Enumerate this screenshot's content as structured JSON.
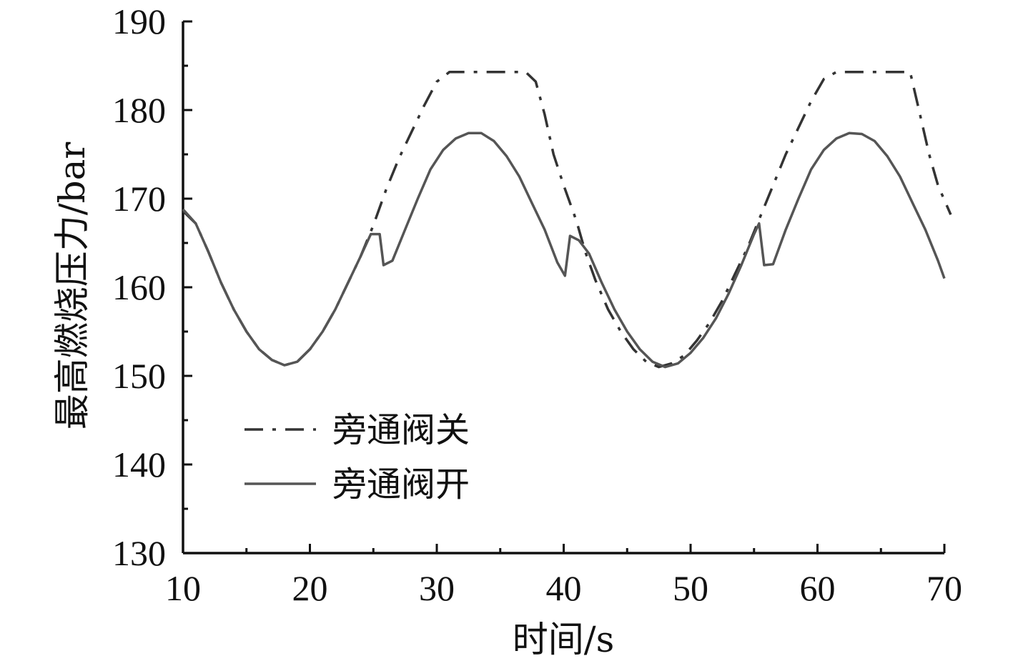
{
  "chart_data": {
    "type": "line",
    "title": "",
    "xlabel": "时间/s",
    "ylabel": "最高燃烧压力/bar",
    "xlim": [
      10,
      70
    ],
    "ylim": [
      130,
      190
    ],
    "xticks": [
      10,
      20,
      30,
      40,
      50,
      60,
      70
    ],
    "yticks": [
      130,
      140,
      150,
      160,
      170,
      180,
      190
    ],
    "grid": false,
    "legend_position": "lower-left",
    "series": [
      {
        "name": "旁通阀关",
        "style": "dash-dot",
        "color": "#333333",
        "points": [
          [
            10,
            168.6
          ],
          [
            11,
            167.2
          ],
          [
            12,
            164
          ],
          [
            13,
            160.5
          ],
          [
            14,
            157.5
          ],
          [
            15,
            155
          ],
          [
            16,
            153
          ],
          [
            17,
            151.8
          ],
          [
            18,
            151.2
          ],
          [
            19,
            151.6
          ],
          [
            20,
            153
          ],
          [
            21,
            155
          ],
          [
            22,
            157.5
          ],
          [
            23,
            160.5
          ],
          [
            24,
            163.5
          ],
          [
            25,
            167
          ],
          [
            26,
            171
          ],
          [
            27,
            174.5
          ],
          [
            28,
            177.5
          ],
          [
            29,
            180.5
          ],
          [
            30,
            183.2
          ],
          [
            31,
            184.3
          ],
          [
            32,
            184.3
          ],
          [
            34,
            184.3
          ],
          [
            36,
            184.3
          ],
          [
            37,
            184.3
          ],
          [
            37.8,
            183.2
          ],
          [
            38.5,
            179.5
          ],
          [
            39.2,
            175
          ],
          [
            40,
            171.5
          ],
          [
            41,
            167.5
          ],
          [
            41.7,
            164
          ],
          [
            42.5,
            160.8
          ],
          [
            43.5,
            157.5
          ],
          [
            44.5,
            155
          ],
          [
            45.5,
            153
          ],
          [
            46.5,
            151.6
          ],
          [
            47.5,
            151
          ],
          [
            48.5,
            151.4
          ],
          [
            49.5,
            152.3
          ],
          [
            50.5,
            154
          ],
          [
            51.5,
            156
          ],
          [
            52.5,
            158.5
          ],
          [
            53.5,
            161.5
          ],
          [
            54.5,
            164.5
          ],
          [
            55.5,
            168
          ],
          [
            56.5,
            171.5
          ],
          [
            57.5,
            175
          ],
          [
            58.5,
            178
          ],
          [
            59.5,
            181
          ],
          [
            60.5,
            183.5
          ],
          [
            61.5,
            184.3
          ],
          [
            63,
            184.3
          ],
          [
            65,
            184.3
          ],
          [
            67.3,
            184.3
          ],
          [
            68,
            180
          ],
          [
            68.8,
            175
          ],
          [
            69.5,
            171.5
          ],
          [
            70.5,
            168.2
          ]
        ]
      },
      {
        "name": "旁通阀开",
        "style": "solid",
        "color": "#555555",
        "points": [
          [
            10,
            168.8
          ],
          [
            11,
            167.2
          ],
          [
            12,
            164
          ],
          [
            13,
            160.5
          ],
          [
            14,
            157.5
          ],
          [
            15,
            155
          ],
          [
            16,
            153
          ],
          [
            17,
            151.8
          ],
          [
            18,
            151.2
          ],
          [
            19,
            151.6
          ],
          [
            20,
            153
          ],
          [
            21,
            155
          ],
          [
            22,
            157.5
          ],
          [
            23,
            160.5
          ],
          [
            24,
            163.5
          ],
          [
            24.8,
            166
          ],
          [
            25.5,
            166
          ],
          [
            25.8,
            162.5
          ],
          [
            26.5,
            163
          ],
          [
            27.5,
            166.5
          ],
          [
            28.5,
            170
          ],
          [
            29.5,
            173.3
          ],
          [
            30.5,
            175.5
          ],
          [
            31.5,
            176.8
          ],
          [
            32.5,
            177.4
          ],
          [
            33.5,
            177.4
          ],
          [
            34.5,
            176.5
          ],
          [
            35.5,
            174.8
          ],
          [
            36.5,
            172.5
          ],
          [
            37.5,
            169.5
          ],
          [
            38.5,
            166.5
          ],
          [
            39.5,
            162.8
          ],
          [
            40.1,
            161.3
          ],
          [
            40.5,
            165.8
          ],
          [
            41.2,
            165.3
          ],
          [
            42,
            163.8
          ],
          [
            43,
            160.5
          ],
          [
            44,
            157.5
          ],
          [
            45,
            155
          ],
          [
            46,
            153
          ],
          [
            47,
            151.6
          ],
          [
            48,
            151
          ],
          [
            49,
            151.4
          ],
          [
            50,
            152.6
          ],
          [
            51,
            154.3
          ],
          [
            52,
            156.5
          ],
          [
            53,
            159.3
          ],
          [
            54,
            162.5
          ],
          [
            55,
            166
          ],
          [
            55.4,
            167.2
          ],
          [
            55.8,
            162.5
          ],
          [
            56.5,
            162.6
          ],
          [
            57.5,
            166.5
          ],
          [
            58.5,
            170
          ],
          [
            59.5,
            173.3
          ],
          [
            60.5,
            175.5
          ],
          [
            61.5,
            176.8
          ],
          [
            62.5,
            177.4
          ],
          [
            63.5,
            177.3
          ],
          [
            64.5,
            176.5
          ],
          [
            65.5,
            174.8
          ],
          [
            66.5,
            172.5
          ],
          [
            67.5,
            169.5
          ],
          [
            68.5,
            166.5
          ],
          [
            69.5,
            163
          ],
          [
            70,
            161
          ]
        ]
      }
    ]
  }
}
